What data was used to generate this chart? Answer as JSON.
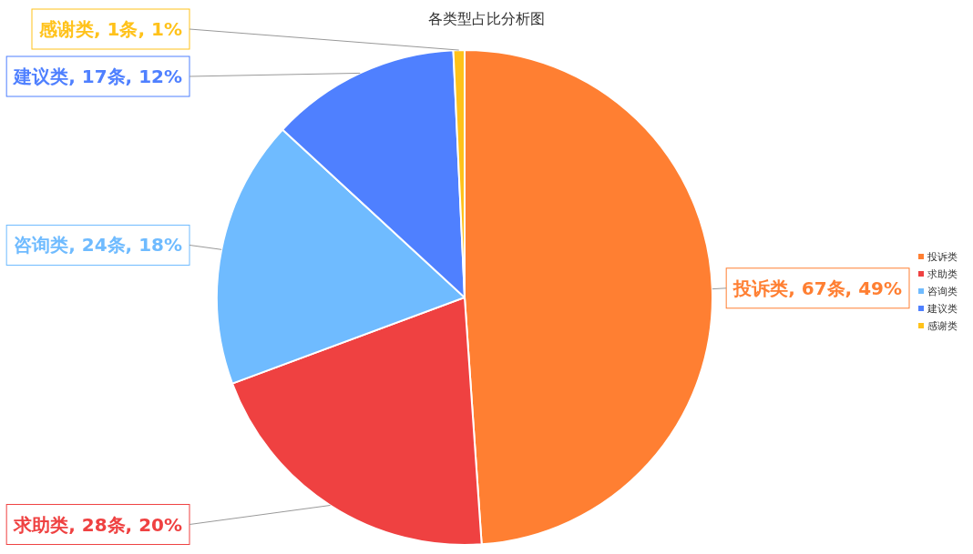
{
  "chart_data": {
    "type": "pie",
    "title": "各类型占比分析图",
    "categories": [
      "投诉类",
      "求助类",
      "咨询类",
      "建议类",
      "感谢类"
    ],
    "values": [
      67,
      28,
      24,
      17,
      1
    ],
    "value_labels": [
      "投诉类, 67条, 49%",
      "求助类, 28条, 20%",
      "咨询类, 24条, 18%",
      "建议类, 17条, 12%",
      "感谢类, 1条, 1%"
    ],
    "colors": [
      "#ff7f32",
      "#ef4141",
      "#6fbbff",
      "#4f80ff",
      "#ffc21a"
    ],
    "legend": "right"
  }
}
